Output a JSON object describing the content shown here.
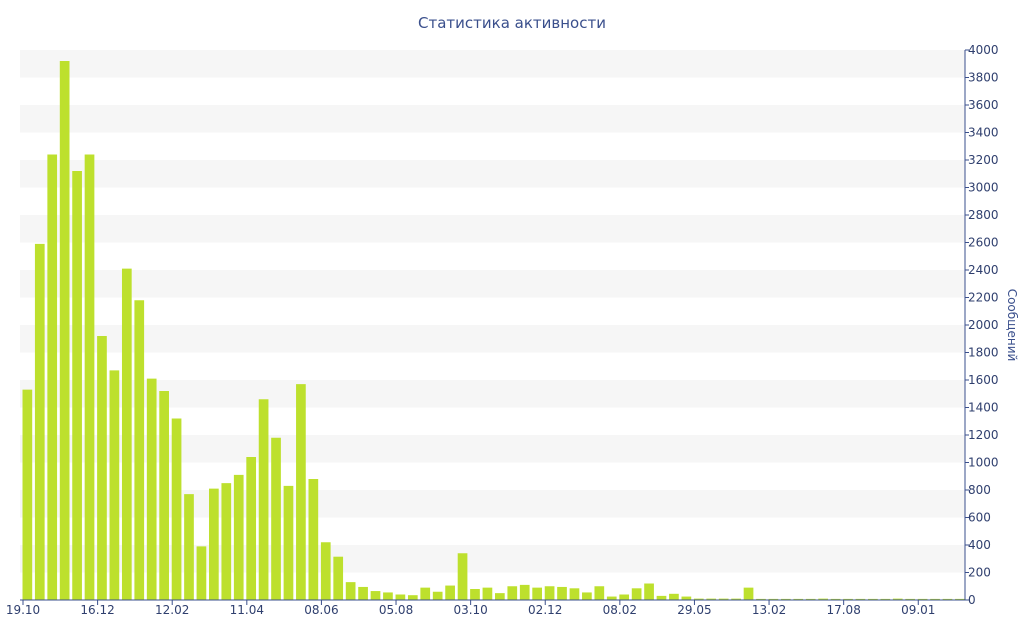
{
  "chart_data": {
    "type": "bar",
    "title": "Статистика активности",
    "ylabel": "Сообщений",
    "xlabel": "",
    "ylim": [
      0,
      4000
    ],
    "ytick_step": 200,
    "y_axis_side": "right",
    "grid": "alternating horizontal bands",
    "bar_color": "#bde02d",
    "x_tick_labels": [
      "19.10",
      "16.12",
      "12.02",
      "11.04",
      "08.06",
      "05.08",
      "03.10",
      "02.12",
      "08.02",
      "29.05",
      "13.02",
      "17.08",
      "09.01"
    ],
    "values": [
      1530,
      2590,
      3240,
      3920,
      3120,
      3240,
      1920,
      1670,
      2410,
      2180,
      1610,
      1520,
      1320,
      770,
      390,
      810,
      850,
      910,
      1040,
      1460,
      1180,
      830,
      1570,
      880,
      420,
      315,
      130,
      95,
      65,
      55,
      40,
      35,
      90,
      60,
      105,
      340,
      80,
      90,
      50,
      100,
      110,
      90,
      100,
      95,
      85,
      55,
      100,
      25,
      40,
      85,
      120,
      30,
      45,
      25,
      10,
      10,
      10,
      10,
      90,
      8,
      8,
      8,
      8,
      8,
      10,
      8,
      8,
      8,
      8,
      8,
      10,
      8,
      8,
      8,
      8,
      8
    ]
  }
}
